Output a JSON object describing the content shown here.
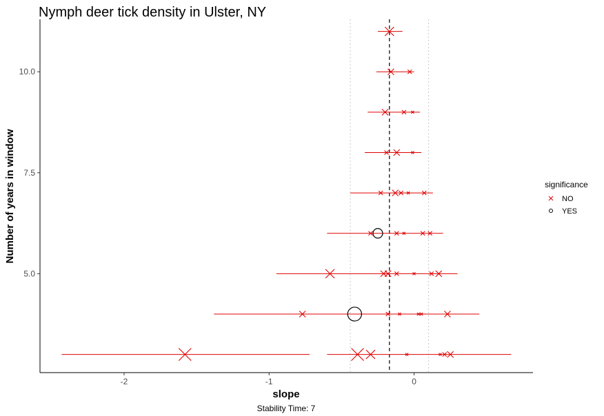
{
  "chart_data": {
    "type": "scatter",
    "title": "Nymph deer tick density in Ulster, NY",
    "xlabel": "slope",
    "ylabel": "Number of years in window",
    "caption": "Stability Time: 7",
    "xlim": [
      -2.58,
      0.82
    ],
    "ylim": [
      2.55,
      11.3
    ],
    "x_ticks": [
      {
        "value": -2,
        "label": "-2"
      },
      {
        "value": -1,
        "label": "-1"
      },
      {
        "value": 0,
        "label": "0"
      }
    ],
    "y_ticks": [
      {
        "value": 5.0,
        "label": "5.0"
      },
      {
        "value": 7.5,
        "label": "7.5"
      },
      {
        "value": 10.0,
        "label": "10.0"
      }
    ],
    "reference_lines": {
      "dashed": -0.17,
      "dotted": [
        -0.44,
        0.1
      ]
    },
    "legend": {
      "title": "significance",
      "position": "right"
    },
    "series": [
      {
        "name": "NO",
        "marker": "x",
        "color": "#e00000"
      },
      {
        "name": "YES",
        "marker": "circle",
        "color": "#000000"
      }
    ],
    "error_bars": [
      {
        "y": 11,
        "x_min": -0.25,
        "x_max": -0.08
      },
      {
        "y": 10,
        "x_min": -0.26,
        "x_max": 0.0
      },
      {
        "y": 9,
        "x_min": -0.32,
        "x_max": 0.04
      },
      {
        "y": 8,
        "x_min": -0.34,
        "x_max": 0.05
      },
      {
        "y": 7,
        "x_min": -0.44,
        "x_max": 0.13
      },
      {
        "y": 6,
        "x_min": -0.6,
        "x_max": 0.2
      },
      {
        "y": 5,
        "x_min": -0.95,
        "x_max": 0.3
      },
      {
        "y": 4,
        "x_min": -1.38,
        "x_max": 0.45
      },
      {
        "y": 3,
        "x_min": -2.43,
        "x_max": -0.72
      },
      {
        "y": 3,
        "x_min": -0.6,
        "x_max": 0.67
      }
    ],
    "points": [
      {
        "x": -0.17,
        "y": 11,
        "sig": "NO",
        "size": 4
      },
      {
        "x": -0.16,
        "y": 10,
        "sig": "NO",
        "size": 3
      },
      {
        "x": -0.03,
        "y": 10,
        "sig": "NO",
        "size": 2
      },
      {
        "x": -0.2,
        "y": 9,
        "sig": "NO",
        "size": 3
      },
      {
        "x": -0.07,
        "y": 9,
        "sig": "NO",
        "size": 2
      },
      {
        "x": -0.01,
        "y": 9,
        "sig": "NO",
        "size": 1
      },
      {
        "x": -0.19,
        "y": 8,
        "sig": "NO",
        "size": 2
      },
      {
        "x": -0.12,
        "y": 8,
        "sig": "NO",
        "size": 3
      },
      {
        "x": -0.01,
        "y": 8,
        "sig": "NO",
        "size": 1
      },
      {
        "x": -0.23,
        "y": 7,
        "sig": "NO",
        "size": 2
      },
      {
        "x": -0.13,
        "y": 7,
        "sig": "NO",
        "size": 3
      },
      {
        "x": -0.09,
        "y": 7,
        "sig": "NO",
        "size": 2
      },
      {
        "x": -0.04,
        "y": 7,
        "sig": "NO",
        "size": 1
      },
      {
        "x": 0.07,
        "y": 7,
        "sig": "NO",
        "size": 2
      },
      {
        "x": -0.3,
        "y": 6,
        "sig": "NO",
        "size": 2
      },
      {
        "x": -0.25,
        "y": 6,
        "sig": "YES",
        "size": 3
      },
      {
        "x": -0.12,
        "y": 6,
        "sig": "NO",
        "size": 2
      },
      {
        "x": -0.07,
        "y": 6,
        "sig": "NO",
        "size": 1
      },
      {
        "x": 0.06,
        "y": 6,
        "sig": "NO",
        "size": 2
      },
      {
        "x": 0.11,
        "y": 6,
        "sig": "NO",
        "size": 2
      },
      {
        "x": -0.58,
        "y": 5,
        "sig": "NO",
        "size": 4
      },
      {
        "x": -0.21,
        "y": 5,
        "sig": "NO",
        "size": 3
      },
      {
        "x": -0.18,
        "y": 5,
        "sig": "NO",
        "size": 3
      },
      {
        "x": -0.12,
        "y": 5,
        "sig": "NO",
        "size": 2
      },
      {
        "x": 0.0,
        "y": 5,
        "sig": "NO",
        "size": 1
      },
      {
        "x": 0.12,
        "y": 5,
        "sig": "NO",
        "size": 2
      },
      {
        "x": 0.17,
        "y": 5,
        "sig": "NO",
        "size": 3
      },
      {
        "x": -0.77,
        "y": 4,
        "sig": "NO",
        "size": 3
      },
      {
        "x": -0.41,
        "y": 4,
        "sig": "YES",
        "size": 4
      },
      {
        "x": -0.18,
        "y": 4,
        "sig": "NO",
        "size": 2
      },
      {
        "x": -0.1,
        "y": 4,
        "sig": "NO",
        "size": 1
      },
      {
        "x": 0.03,
        "y": 4,
        "sig": "NO",
        "size": 1
      },
      {
        "x": 0.05,
        "y": 4,
        "sig": "NO",
        "size": 1
      },
      {
        "x": 0.23,
        "y": 4,
        "sig": "NO",
        "size": 3
      },
      {
        "x": -1.58,
        "y": 3,
        "sig": "NO",
        "size": 5
      },
      {
        "x": -0.39,
        "y": 3,
        "sig": "NO",
        "size": 5
      },
      {
        "x": -0.3,
        "y": 3,
        "sig": "NO",
        "size": 4
      },
      {
        "x": -0.05,
        "y": 3,
        "sig": "NO",
        "size": 1
      },
      {
        "x": 0.18,
        "y": 3,
        "sig": "NO",
        "size": 1
      },
      {
        "x": 0.21,
        "y": 3,
        "sig": "NO",
        "size": 2
      },
      {
        "x": 0.25,
        "y": 3,
        "sig": "NO",
        "size": 3
      }
    ]
  }
}
